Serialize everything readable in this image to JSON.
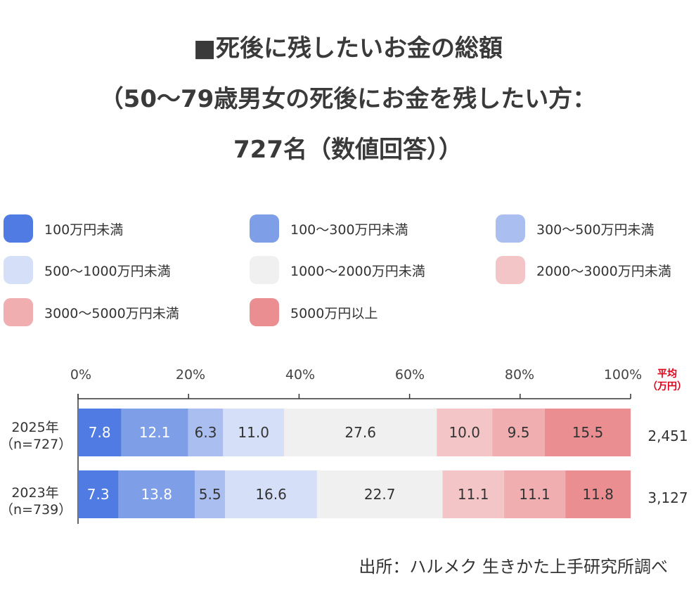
{
  "title_lines": [
    "■死後に残したいお金の総額",
    "（50～79歳男女の死後にお金を残したい方：",
    "727名（数値回答））"
  ],
  "legend": [
    {
      "label": "100万円未満",
      "color": "#4f7be3"
    },
    {
      "label": "100～300万円未満",
      "color": "#7f9ee8"
    },
    {
      "label": "300～500万円未満",
      "color": "#aabef0"
    },
    {
      "label": "500～1000万円未満",
      "color": "#d5e0f8"
    },
    {
      "label": "1000～2000万円未満",
      "color": "#f0f0f0"
    },
    {
      "label": "2000～3000万円未満",
      "color": "#f4c5c7"
    },
    {
      "label": "3000～5000万円未満",
      "color": "#f0aeb1"
    },
    {
      "label": "5000万円以上",
      "color": "#ea8e92"
    }
  ],
  "avg_header": {
    "line1": "平均",
    "line2": "（万円）"
  },
  "rows": [
    {
      "year": "2025年",
      "n": "（n=727）",
      "values": [
        7.8,
        12.1,
        6.3,
        11.0,
        27.6,
        10.0,
        9.5,
        15.5
      ],
      "labels": [
        "7.8",
        "12.1",
        "6.3",
        "11.0",
        "27.6",
        "10.0",
        "9.5",
        "15.5"
      ],
      "avg": "2,451"
    },
    {
      "year": "2023年",
      "n": "（n=739）",
      "values": [
        7.3,
        13.8,
        5.5,
        16.6,
        22.7,
        11.1,
        11.1,
        11.8
      ],
      "labels": [
        "7.3",
        "13.8",
        "5.5",
        "16.6",
        "22.7",
        "11.1",
        "11.1",
        "11.8"
      ],
      "avg": "3,127"
    }
  ],
  "source": "出所：ハルメク 生きかた上手研究所調べ",
  "chart_data": {
    "type": "bar",
    "stacked": true,
    "orientation": "horizontal",
    "categories": [
      "2025年（n=727）",
      "2023年（n=739）"
    ],
    "series": [
      {
        "name": "100万円未満",
        "values": [
          7.8,
          7.3
        ]
      },
      {
        "name": "100～300万円未満",
        "values": [
          12.1,
          13.8
        ]
      },
      {
        "name": "300～500万円未満",
        "values": [
          6.3,
          5.5
        ]
      },
      {
        "name": "500～1000万円未満",
        "values": [
          11.0,
          16.6
        ]
      },
      {
        "name": "1000～2000万円未満",
        "values": [
          27.6,
          22.7
        ]
      },
      {
        "name": "2000～3000万円未満",
        "values": [
          10.0,
          11.1
        ]
      },
      {
        "name": "3000～5000万円未満",
        "values": [
          9.5,
          11.1
        ]
      },
      {
        "name": "5000万円以上",
        "values": [
          15.5,
          11.8
        ]
      }
    ],
    "xlim": [
      0,
      100
    ],
    "xticks": [
      "0%",
      "20%",
      "40%",
      "60%",
      "80%",
      "100%"
    ],
    "title": "■死後に残したいお金の総額（50～79歳男女の死後にお金を残したい方：727名（数値回答））",
    "legend": "top",
    "averages": [
      "2,451",
      "3,127"
    ]
  }
}
